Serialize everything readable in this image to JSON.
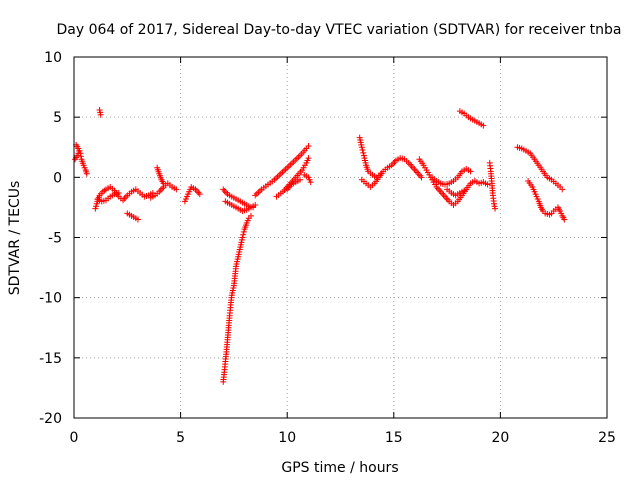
{
  "chart_data": {
    "type": "scatter",
    "title": "Day 064 of 2017, Sidereal Day-to-day VTEC variation (SDTVAR) for receiver tnba",
    "xlabel": "GPS time / hours",
    "ylabel": "SDTVAR / TECUs",
    "xlim": [
      0,
      25
    ],
    "ylim": [
      -20,
      10
    ],
    "xticks": [
      0,
      5,
      10,
      15,
      20,
      25
    ],
    "yticks": [
      -20,
      -15,
      -10,
      -5,
      0,
      5,
      10
    ],
    "grid": true,
    "marker": "+",
    "color": "#ff0000",
    "series": [
      {
        "name": "SDTVAR",
        "tracks": [
          [
            [
              0.1,
              2.7
            ],
            [
              0.2,
              2.4
            ],
            [
              0.3,
              2.0
            ],
            [
              0.35,
              1.5
            ],
            [
              0.45,
              1.0
            ],
            [
              0.55,
              0.6
            ],
            [
              0.6,
              0.3
            ]
          ],
          [
            [
              0.05,
              1.5
            ],
            [
              0.15,
              1.8
            ],
            [
              0.25,
              2.2
            ]
          ],
          [
            [
              1.0,
              -2.6
            ],
            [
              1.1,
              -2.0
            ],
            [
              1.2,
              -1.5
            ],
            [
              1.35,
              -1.2
            ],
            [
              1.5,
              -1.0
            ],
            [
              1.7,
              -0.8
            ],
            [
              1.9,
              -1.1
            ],
            [
              2.1,
              -1.6
            ],
            [
              2.3,
              -1.9
            ],
            [
              2.5,
              -1.5
            ],
            [
              2.7,
              -1.2
            ],
            [
              2.9,
              -1.0
            ],
            [
              3.1,
              -1.3
            ],
            [
              3.3,
              -1.6
            ],
            [
              3.5,
              -1.5
            ],
            [
              3.7,
              -1.3
            ]
          ],
          [
            [
              1.1,
              -1.8
            ],
            [
              1.3,
              -2.0
            ],
            [
              1.5,
              -1.9
            ],
            [
              1.7,
              -1.6
            ],
            [
              1.9,
              -1.4
            ],
            [
              2.1,
              -1.3
            ]
          ],
          [
            [
              1.2,
              5.6
            ],
            [
              1.25,
              5.2
            ]
          ],
          [
            [
              2.5,
              -3.0
            ],
            [
              2.7,
              -3.2
            ],
            [
              2.9,
              -3.4
            ],
            [
              3.0,
              -3.5
            ]
          ],
          [
            [
              3.6,
              -1.7
            ],
            [
              3.8,
              -1.5
            ],
            [
              4.0,
              -1.2
            ],
            [
              4.2,
              -0.8
            ],
            [
              4.4,
              -0.5
            ],
            [
              4.6,
              -0.8
            ],
            [
              4.8,
              -1.0
            ]
          ],
          [
            [
              3.9,
              0.8
            ],
            [
              4.0,
              0.3
            ],
            [
              4.1,
              -0.2
            ],
            [
              4.2,
              -0.5
            ]
          ],
          [
            [
              5.2,
              -2.0
            ],
            [
              5.3,
              -1.6
            ],
            [
              5.4,
              -1.2
            ],
            [
              5.5,
              -0.8
            ],
            [
              5.7,
              -1.0
            ],
            [
              5.9,
              -1.4
            ]
          ],
          [
            [
              7.0,
              -17.0
            ],
            [
              7.05,
              -16.2
            ],
            [
              7.1,
              -15.3
            ],
            [
              7.15,
              -14.5
            ],
            [
              7.2,
              -13.5
            ],
            [
              7.25,
              -12.5
            ],
            [
              7.3,
              -11.5
            ],
            [
              7.35,
              -10.6
            ],
            [
              7.4,
              -9.8
            ],
            [
              7.5,
              -9.0
            ],
            [
              7.55,
              -8.2
            ],
            [
              7.6,
              -7.4
            ],
            [
              7.7,
              -6.6
            ],
            [
              7.8,
              -5.8
            ],
            [
              7.9,
              -5.0
            ],
            [
              8.0,
              -4.3
            ],
            [
              8.1,
              -3.8
            ],
            [
              8.2,
              -3.4
            ],
            [
              8.3,
              -3.2
            ]
          ],
          [
            [
              7.0,
              -1.0
            ],
            [
              7.2,
              -1.4
            ],
            [
              7.4,
              -1.6
            ],
            [
              7.6,
              -1.8
            ],
            [
              7.8,
              -2.0
            ],
            [
              8.0,
              -2.2
            ],
            [
              8.2,
              -2.4
            ],
            [
              8.4,
              -2.5
            ]
          ],
          [
            [
              7.1,
              -2.0
            ],
            [
              7.3,
              -2.2
            ],
            [
              7.5,
              -2.4
            ],
            [
              7.7,
              -2.6
            ],
            [
              7.9,
              -2.8
            ],
            [
              8.1,
              -2.7
            ],
            [
              8.3,
              -2.5
            ],
            [
              8.5,
              -2.3
            ]
          ],
          [
            [
              8.5,
              -1.5
            ],
            [
              8.8,
              -1.0
            ],
            [
              9.1,
              -0.6
            ],
            [
              9.4,
              -0.2
            ],
            [
              9.7,
              0.3
            ],
            [
              10.0,
              0.8
            ],
            [
              10.3,
              1.3
            ],
            [
              10.6,
              1.8
            ],
            [
              10.9,
              2.4
            ],
            [
              11.0,
              2.6
            ]
          ],
          [
            [
              9.5,
              -1.6
            ],
            [
              9.8,
              -1.2
            ],
            [
              10.1,
              -0.6
            ],
            [
              10.4,
              0.0
            ],
            [
              10.7,
              0.6
            ],
            [
              10.9,
              1.2
            ],
            [
              11.0,
              1.6
            ]
          ],
          [
            [
              10.0,
              -1.0
            ],
            [
              10.2,
              -0.6
            ],
            [
              10.4,
              -0.4
            ],
            [
              10.6,
              -0.2
            ]
          ],
          [
            [
              10.8,
              0.2
            ],
            [
              11.0,
              0.0
            ],
            [
              11.1,
              -0.4
            ]
          ],
          [
            [
              13.4,
              3.3
            ],
            [
              13.5,
              2.5
            ],
            [
              13.6,
              1.8
            ],
            [
              13.7,
              1.0
            ],
            [
              13.8,
              0.5
            ],
            [
              14.0,
              0.2
            ],
            [
              14.2,
              0.0
            ],
            [
              14.4,
              0.3
            ]
          ],
          [
            [
              13.5,
              -0.2
            ],
            [
              13.7,
              -0.5
            ],
            [
              13.9,
              -0.8
            ],
            [
              14.1,
              -0.5
            ],
            [
              14.3,
              0.0
            ],
            [
              14.5,
              0.5
            ],
            [
              14.7,
              0.8
            ],
            [
              14.9,
              1.0
            ],
            [
              15.1,
              1.4
            ],
            [
              15.3,
              1.6
            ],
            [
              15.5,
              1.5
            ],
            [
              15.7,
              1.2
            ],
            [
              15.9,
              0.8
            ],
            [
              16.1,
              0.4
            ],
            [
              16.3,
              0.0
            ]
          ],
          [
            [
              16.2,
              1.5
            ],
            [
              16.4,
              1.0
            ],
            [
              16.6,
              0.4
            ],
            [
              16.8,
              -0.2
            ],
            [
              17.0,
              -0.8
            ],
            [
              17.2,
              -1.2
            ],
            [
              17.4,
              -1.6
            ],
            [
              17.6,
              -2.0
            ],
            [
              17.8,
              -2.3
            ],
            [
              18.0,
              -2.0
            ],
            [
              18.2,
              -1.5
            ],
            [
              18.4,
              -1.0
            ],
            [
              18.6,
              -0.5
            ],
            [
              18.8,
              -0.3
            ],
            [
              19.0,
              -0.5
            ],
            [
              19.2,
              -0.4
            ],
            [
              19.4,
              -0.6
            ]
          ],
          [
            [
              16.8,
              0.0
            ],
            [
              17.0,
              -0.3
            ],
            [
              17.2,
              -0.5
            ],
            [
              17.4,
              -0.6
            ],
            [
              17.6,
              -0.5
            ],
            [
              17.8,
              -0.3
            ],
            [
              18.0,
              0.0
            ],
            [
              18.2,
              0.5
            ],
            [
              18.4,
              0.7
            ],
            [
              18.6,
              0.5
            ]
          ],
          [
            [
              17.5,
              -1.0
            ],
            [
              17.7,
              -1.3
            ],
            [
              17.9,
              -1.5
            ],
            [
              18.1,
              -1.3
            ],
            [
              18.3,
              -1.1
            ]
          ],
          [
            [
              18.1,
              5.5
            ],
            [
              18.3,
              5.3
            ],
            [
              18.5,
              5.0
            ],
            [
              18.7,
              4.8
            ],
            [
              18.9,
              4.6
            ],
            [
              19.1,
              4.4
            ],
            [
              19.2,
              4.3
            ]
          ],
          [
            [
              19.5,
              1.2
            ],
            [
              19.55,
              0.5
            ],
            [
              19.6,
              -0.5
            ],
            [
              19.65,
              -1.5
            ],
            [
              19.7,
              -2.2
            ],
            [
              19.75,
              -2.6
            ]
          ],
          [
            [
              20.8,
              2.5
            ],
            [
              21.0,
              2.4
            ],
            [
              21.2,
              2.2
            ],
            [
              21.4,
              2.0
            ],
            [
              21.6,
              1.5
            ],
            [
              21.8,
              1.0
            ],
            [
              22.0,
              0.5
            ],
            [
              22.2,
              0.0
            ],
            [
              22.4,
              -0.2
            ],
            [
              22.6,
              -0.5
            ],
            [
              22.8,
              -0.8
            ],
            [
              22.9,
              -1.0
            ]
          ],
          [
            [
              21.3,
              -0.3
            ],
            [
              21.5,
              -0.8
            ],
            [
              21.6,
              -1.2
            ],
            [
              21.7,
              -1.6
            ],
            [
              21.8,
              -2.0
            ],
            [
              21.9,
              -2.5
            ],
            [
              22.0,
              -2.8
            ],
            [
              22.1,
              -3.0
            ],
            [
              22.3,
              -3.1
            ],
            [
              22.4,
              -3.0
            ],
            [
              22.5,
              -2.8
            ],
            [
              22.7,
              -2.5
            ],
            [
              22.8,
              -2.8
            ],
            [
              22.9,
              -3.2
            ],
            [
              23.0,
              -3.5
            ]
          ]
        ]
      }
    ]
  }
}
